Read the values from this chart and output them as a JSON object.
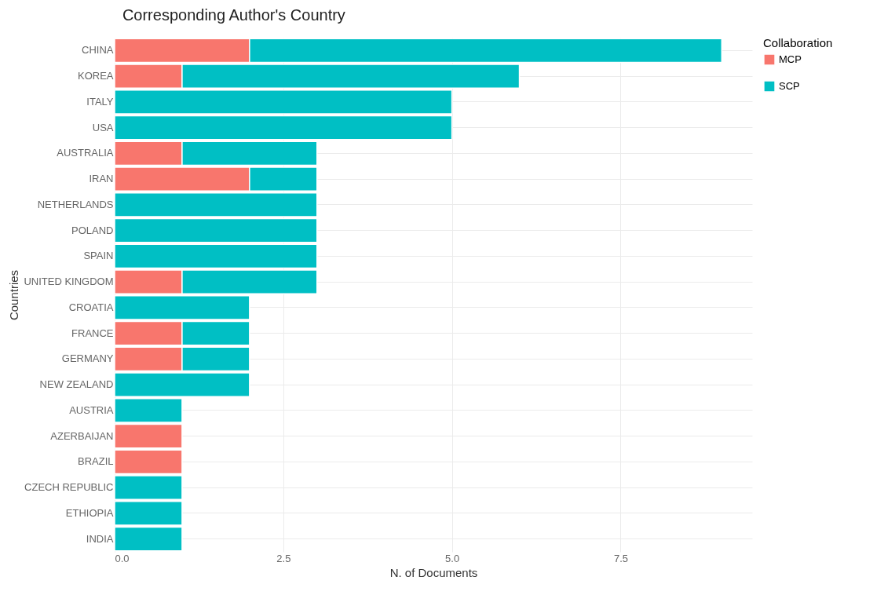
{
  "chart_data": {
    "type": "bar",
    "orientation": "horizontal",
    "stacked": true,
    "title": "Corresponding Author's Country",
    "xlabel": "N. of Documents",
    "ylabel": "Countries",
    "legend_title": "Collaboration",
    "legend": "top right",
    "grid": true,
    "categories": [
      "CHINA",
      "KOREA",
      "ITALY",
      "USA",
      "AUSTRALIA",
      "IRAN",
      "NETHERLANDS",
      "POLAND",
      "SPAIN",
      "UNITED KINGDOM",
      "CROATIA",
      "FRANCE",
      "GERMANY",
      "NEW ZEALAND",
      "AUSTRIA",
      "AZERBAIJAN",
      "BRAZIL",
      "CZECH REPUBLIC",
      "ETHIOPIA",
      "INDIA"
    ],
    "series": [
      {
        "name": "MCP",
        "color": "#f8766d",
        "values": [
          2,
          1,
          null,
          null,
          1,
          2,
          null,
          null,
          null,
          1,
          null,
          1,
          1,
          null,
          null,
          1,
          1,
          null,
          null,
          null
        ]
      },
      {
        "name": "SCP",
        "color": "#00bfc4",
        "values": [
          7,
          5,
          5,
          5,
          2,
          1,
          3,
          3,
          3,
          2,
          2,
          1,
          1,
          2,
          1,
          null,
          null,
          1,
          1,
          1
        ]
      }
    ],
    "xlim": [
      0,
      9.45
    ],
    "xticks": [
      {
        "value": 0,
        "label": "0.0"
      },
      {
        "value": 2.5,
        "label": "2.5"
      },
      {
        "value": 5,
        "label": "5.0"
      },
      {
        "value": 7.5,
        "label": "7.5"
      }
    ]
  }
}
